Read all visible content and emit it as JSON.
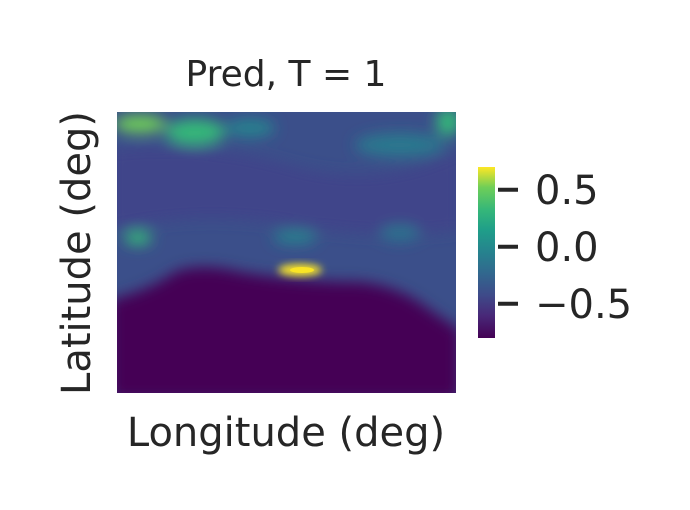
{
  "chart_data": {
    "type": "heatmap",
    "title": "Pred, T = 1",
    "xlabel": "Longitude (deg)",
    "ylabel": "Latitude (deg)",
    "colormap": "viridis",
    "colorbar": {
      "vmin": -0.8,
      "vmax": 0.7,
      "ticks": [
        0.5,
        0.0,
        -0.5
      ],
      "tick_labels": [
        "0.5",
        "0.0",
        "−0.5"
      ]
    },
    "grid": false,
    "regions": [
      {
        "desc": "upper band",
        "value": -0.45
      },
      {
        "desc": "lower land mass",
        "value": -0.78
      },
      {
        "desc": "bright spot",
        "value": 0.65
      },
      {
        "desc": "top-left hotspot",
        "value": 0.1
      }
    ]
  }
}
